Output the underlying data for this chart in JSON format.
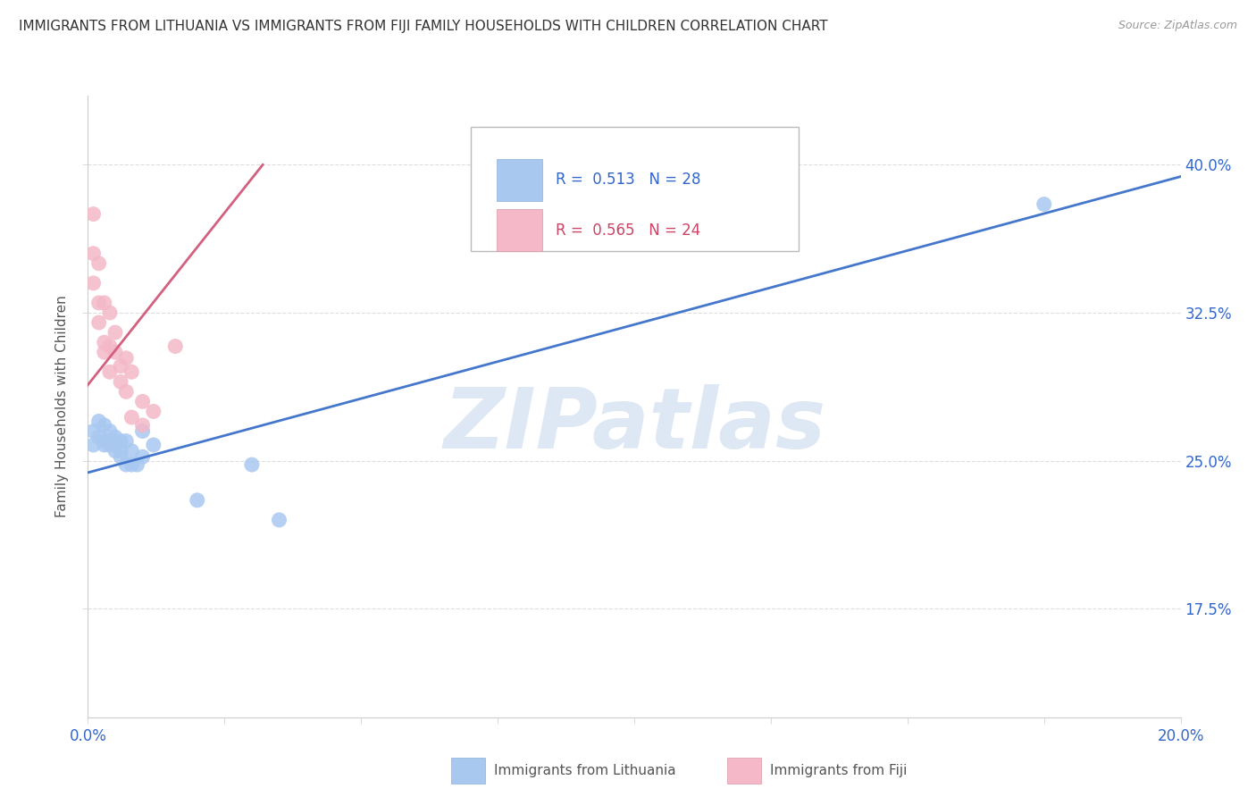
{
  "title": "IMMIGRANTS FROM LITHUANIA VS IMMIGRANTS FROM FIJI FAMILY HOUSEHOLDS WITH CHILDREN CORRELATION CHART",
  "source": "Source: ZipAtlas.com",
  "ylabel": "Family Households with Children",
  "xlim": [
    0.0,
    0.2
  ],
  "ylim": [
    0.12,
    0.435
  ],
  "yticks": [
    0.175,
    0.25,
    0.325,
    0.4
  ],
  "ytick_labels": [
    "17.5%",
    "25.0%",
    "32.5%",
    "40.0%"
  ],
  "xtick_positions": [
    0.0,
    0.025,
    0.05,
    0.075,
    0.1,
    0.125,
    0.15,
    0.175,
    0.2
  ],
  "xtick_labels_show": {
    "0.0": "0.0%",
    "0.20": "20.0%"
  },
  "legend_R1": "0.513",
  "legend_N1": "28",
  "legend_R2": "0.565",
  "legend_N2": "24",
  "blue_color": "#a8c8f0",
  "pink_color": "#f4b8c8",
  "blue_line_color": "#4477cc",
  "pink_line_color": "#d46080",
  "scatter_blue": [
    [
      0.001,
      0.265
    ],
    [
      0.001,
      0.258
    ],
    [
      0.002,
      0.262
    ],
    [
      0.002,
      0.27
    ],
    [
      0.003,
      0.268
    ],
    [
      0.003,
      0.26
    ],
    [
      0.003,
      0.258
    ],
    [
      0.004,
      0.265
    ],
    [
      0.004,
      0.258
    ],
    [
      0.004,
      0.26
    ],
    [
      0.005,
      0.262
    ],
    [
      0.005,
      0.255
    ],
    [
      0.005,
      0.258
    ],
    [
      0.006,
      0.26
    ],
    [
      0.006,
      0.252
    ],
    [
      0.006,
      0.255
    ],
    [
      0.007,
      0.248
    ],
    [
      0.007,
      0.26
    ],
    [
      0.008,
      0.255
    ],
    [
      0.008,
      0.248
    ],
    [
      0.009,
      0.248
    ],
    [
      0.01,
      0.252
    ],
    [
      0.01,
      0.265
    ],
    [
      0.012,
      0.258
    ],
    [
      0.02,
      0.23
    ],
    [
      0.03,
      0.248
    ],
    [
      0.035,
      0.22
    ],
    [
      0.175,
      0.38
    ]
  ],
  "scatter_pink": [
    [
      0.001,
      0.375
    ],
    [
      0.001,
      0.355
    ],
    [
      0.001,
      0.34
    ],
    [
      0.002,
      0.35
    ],
    [
      0.002,
      0.32
    ],
    [
      0.002,
      0.33
    ],
    [
      0.003,
      0.33
    ],
    [
      0.003,
      0.31
    ],
    [
      0.003,
      0.305
    ],
    [
      0.004,
      0.325
    ],
    [
      0.004,
      0.308
    ],
    [
      0.004,
      0.295
    ],
    [
      0.005,
      0.315
    ],
    [
      0.005,
      0.305
    ],
    [
      0.006,
      0.298
    ],
    [
      0.006,
      0.29
    ],
    [
      0.007,
      0.302
    ],
    [
      0.007,
      0.285
    ],
    [
      0.008,
      0.295
    ],
    [
      0.008,
      0.272
    ],
    [
      0.01,
      0.28
    ],
    [
      0.01,
      0.268
    ],
    [
      0.012,
      0.275
    ],
    [
      0.016,
      0.308
    ]
  ],
  "blue_line": [
    [
      0.0,
      0.244
    ],
    [
      0.2,
      0.394
    ]
  ],
  "pink_line": [
    [
      -0.001,
      0.285
    ],
    [
      0.032,
      0.4
    ]
  ],
  "watermark_text": "ZIPatlas",
  "watermark_color": "#dde8f4"
}
